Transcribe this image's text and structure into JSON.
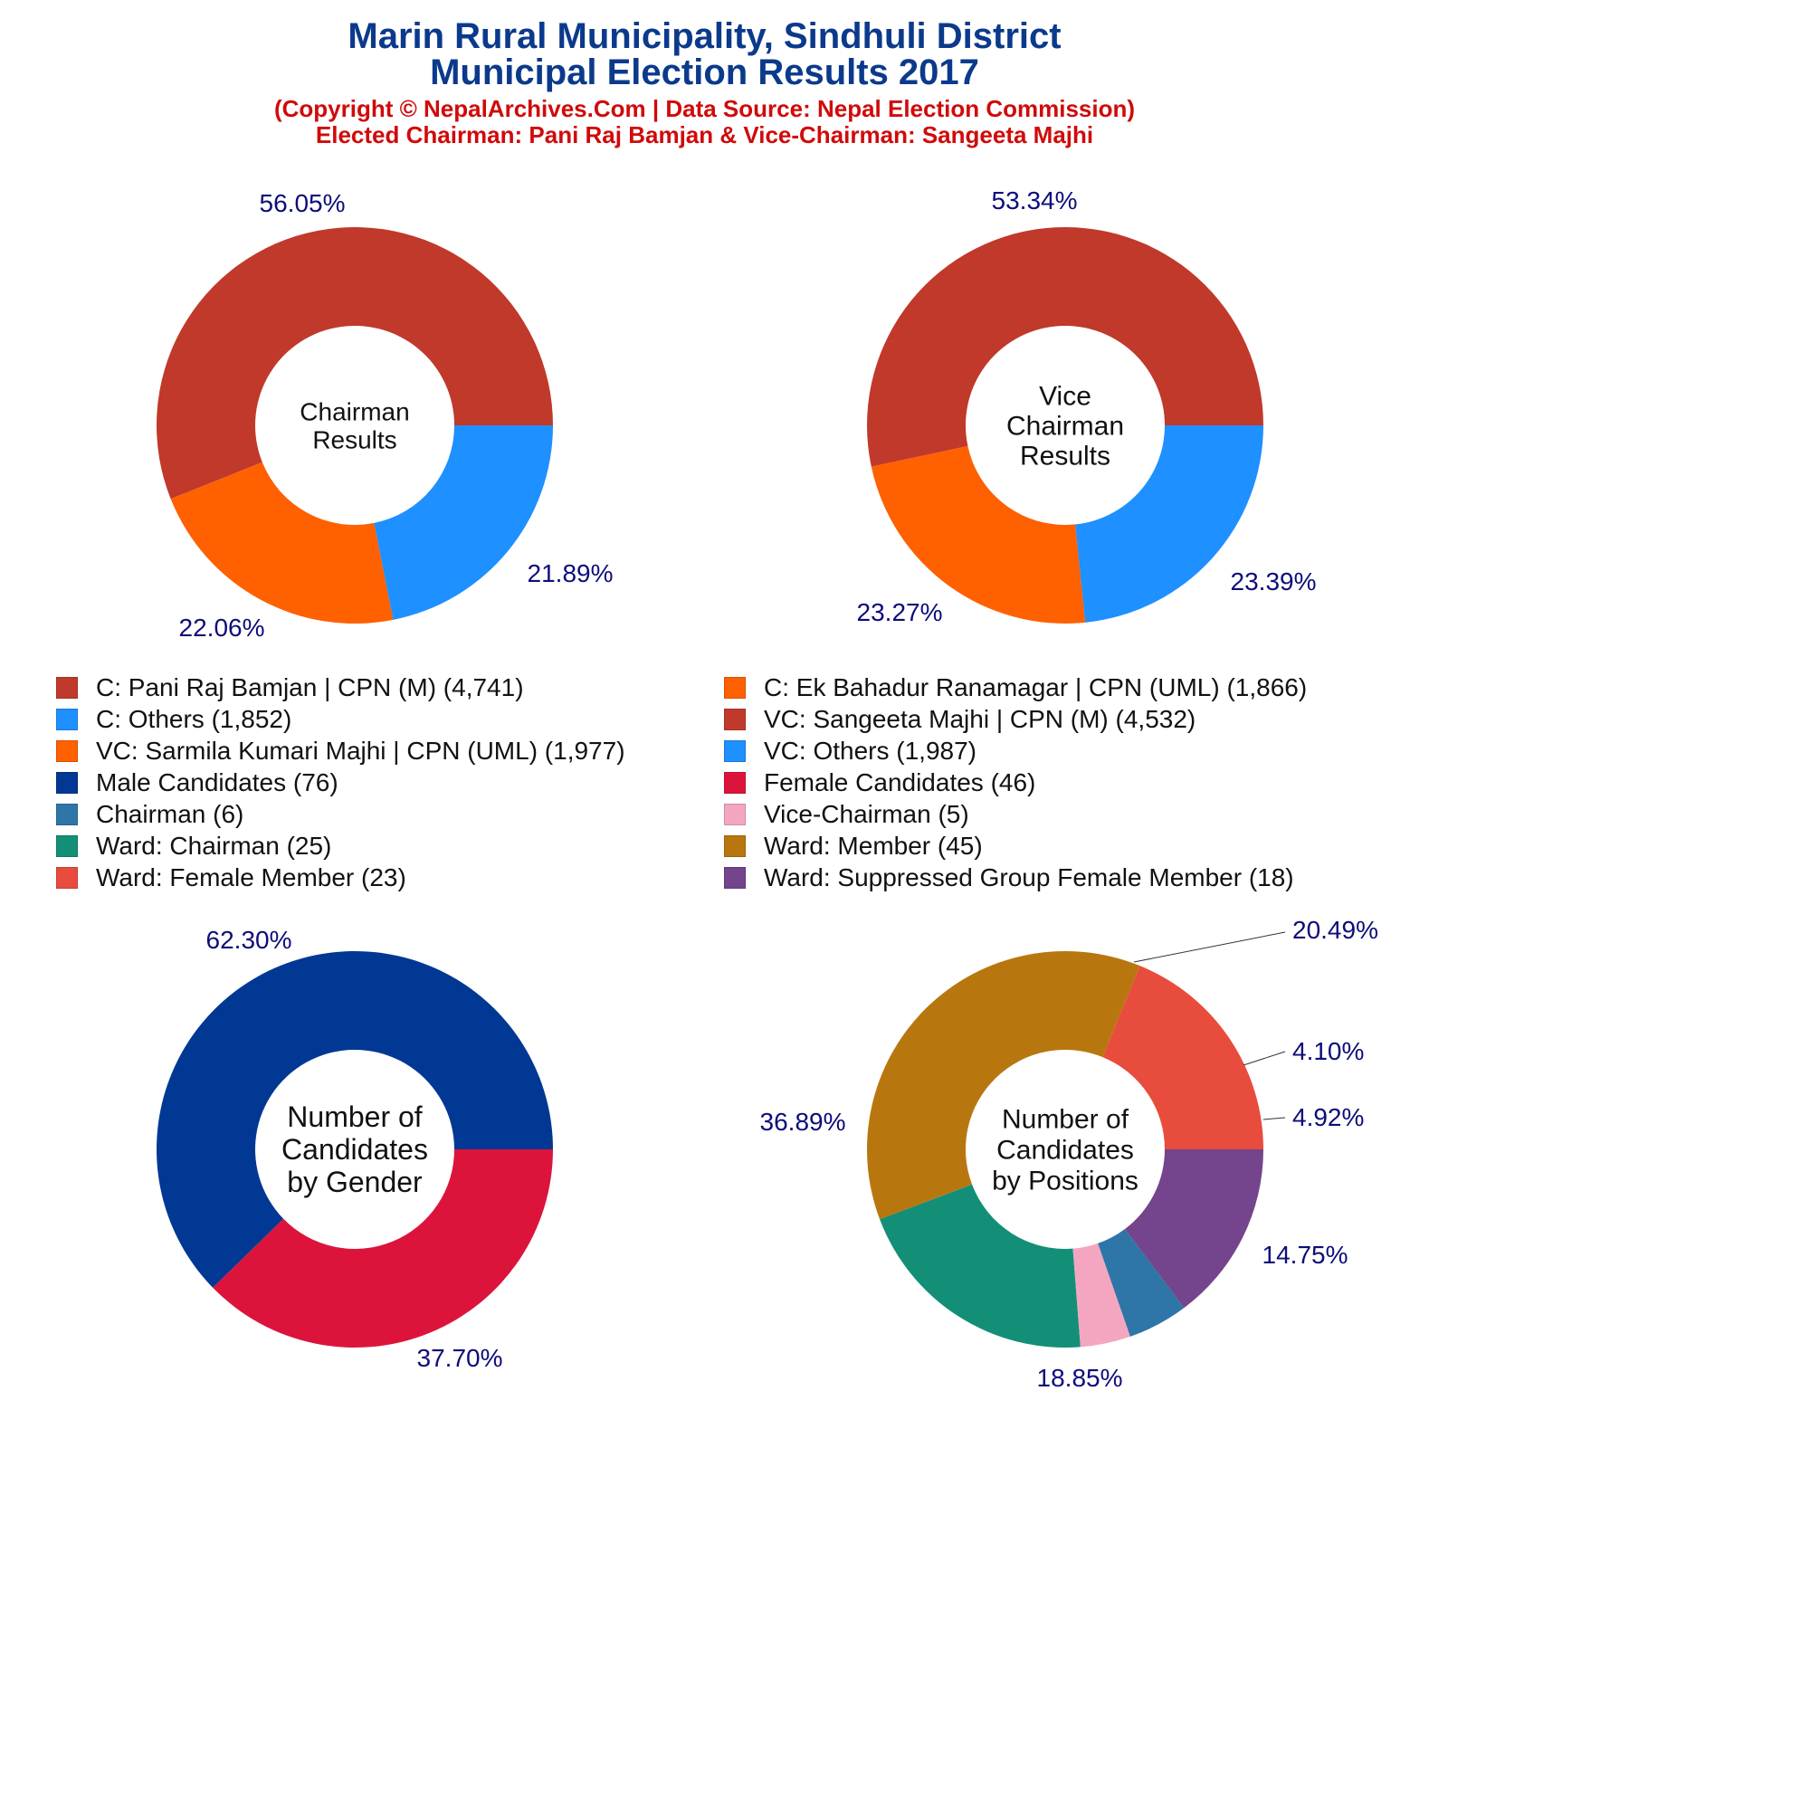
{
  "header": {
    "title_line1": "Marin Rural Municipality, Sindhuli District",
    "title_line2": "Municipal Election Results 2017",
    "subtitle_line1": "(Copyright © NepalArchives.Com | Data Source: Nepal Election Commission)",
    "subtitle_line2": "Elected Chairman: Pani Raj Bamjan & Vice-Chairman: Sangeeta Majhi"
  },
  "legend": [
    {
      "label": "C: Pani Raj Bamjan | CPN (M) (4,741)",
      "color": "#c0392b"
    },
    {
      "label": "C: Ek Bahadur Ranamagar | CPN (UML) (1,866)",
      "color": "#ff6000"
    },
    {
      "label": "C: Others (1,852)",
      "color": "#1e90ff"
    },
    {
      "label": "VC: Sangeeta Majhi | CPN (M) (4,532)",
      "color": "#c0392b"
    },
    {
      "label": "VC: Sarmila Kumari Majhi | CPN (UML) (1,977)",
      "color": "#ff6000"
    },
    {
      "label": "VC: Others (1,987)",
      "color": "#1e90ff"
    },
    {
      "label": "Male Candidates (76)",
      "color": "#003893"
    },
    {
      "label": "Female Candidates (46)",
      "color": "#dc143c"
    },
    {
      "label": "Chairman (6)",
      "color": "#2e75a8"
    },
    {
      "label": "Vice-Chairman (5)",
      "color": "#f4a6c0"
    },
    {
      "label": "Ward: Chairman (25)",
      "color": "#138f77"
    },
    {
      "label": "Ward: Member (45)",
      "color": "#b8770e"
    },
    {
      "label": "Ward: Female Member (23)",
      "color": "#e74c3c"
    },
    {
      "label": "Ward: Suppressed Group Female Member (18)",
      "color": "#74448c"
    }
  ],
  "chart_data": [
    {
      "type": "pie",
      "id": "chairman",
      "center_label": [
        "Chairman",
        "Results"
      ],
      "slices": [
        {
          "name": "C: Pani Raj Bamjan | CPN (M)",
          "value": 4741,
          "pct_label": "56.05%",
          "color": "#c0392b"
        },
        {
          "name": "C: Ek Bahadur Ranamagar | CPN (UML)",
          "value": 1866,
          "pct_label": "22.06%",
          "color": "#ff6000"
        },
        {
          "name": "C: Others",
          "value": 1852,
          "pct_label": "21.89%",
          "color": "#1e90ff"
        }
      ]
    },
    {
      "type": "pie",
      "id": "vice-chairman",
      "center_label": [
        "Vice",
        "Chairman",
        "Results"
      ],
      "slices": [
        {
          "name": "VC: Sangeeta Majhi | CPN (M)",
          "value": 4532,
          "pct_label": "53.34%",
          "color": "#c0392b"
        },
        {
          "name": "VC: Sarmila Kumari Majhi | CPN (UML)",
          "value": 1977,
          "pct_label": "23.27%",
          "color": "#ff6000"
        },
        {
          "name": "VC: Others",
          "value": 1987,
          "pct_label": "23.39%",
          "color": "#1e90ff"
        }
      ]
    },
    {
      "type": "pie",
      "id": "gender",
      "center_label": [
        "Number of",
        "Candidates",
        "by Gender"
      ],
      "slices": [
        {
          "name": "Male Candidates",
          "value": 76,
          "pct_label": "62.30%",
          "color": "#003893"
        },
        {
          "name": "Female Candidates",
          "value": 46,
          "pct_label": "37.70%",
          "color": "#dc143c"
        }
      ]
    },
    {
      "type": "pie",
      "id": "positions",
      "center_label": [
        "Number of",
        "Candidates",
        "by Positions"
      ],
      "slices": [
        {
          "name": "Ward: Female Member",
          "value": 23,
          "pct_label": "18.85%",
          "color": "#e74c3c"
        },
        {
          "name": "Ward: Member",
          "value": 45,
          "pct_label": "36.89%",
          "color": "#b8770e"
        },
        {
          "name": "Ward: Chairman",
          "value": 25,
          "pct_label": "20.49%",
          "color": "#138f77"
        },
        {
          "name": "Vice-Chairman",
          "value": 5,
          "pct_label": "4.10%",
          "color": "#f4a6c0"
        },
        {
          "name": "Chairman",
          "value": 6,
          "pct_label": "4.92%",
          "color": "#2e75a8"
        },
        {
          "name": "Ward: Suppressed Group Female Member",
          "value": 18,
          "pct_label": "14.75%",
          "color": "#74448c"
        }
      ]
    }
  ]
}
